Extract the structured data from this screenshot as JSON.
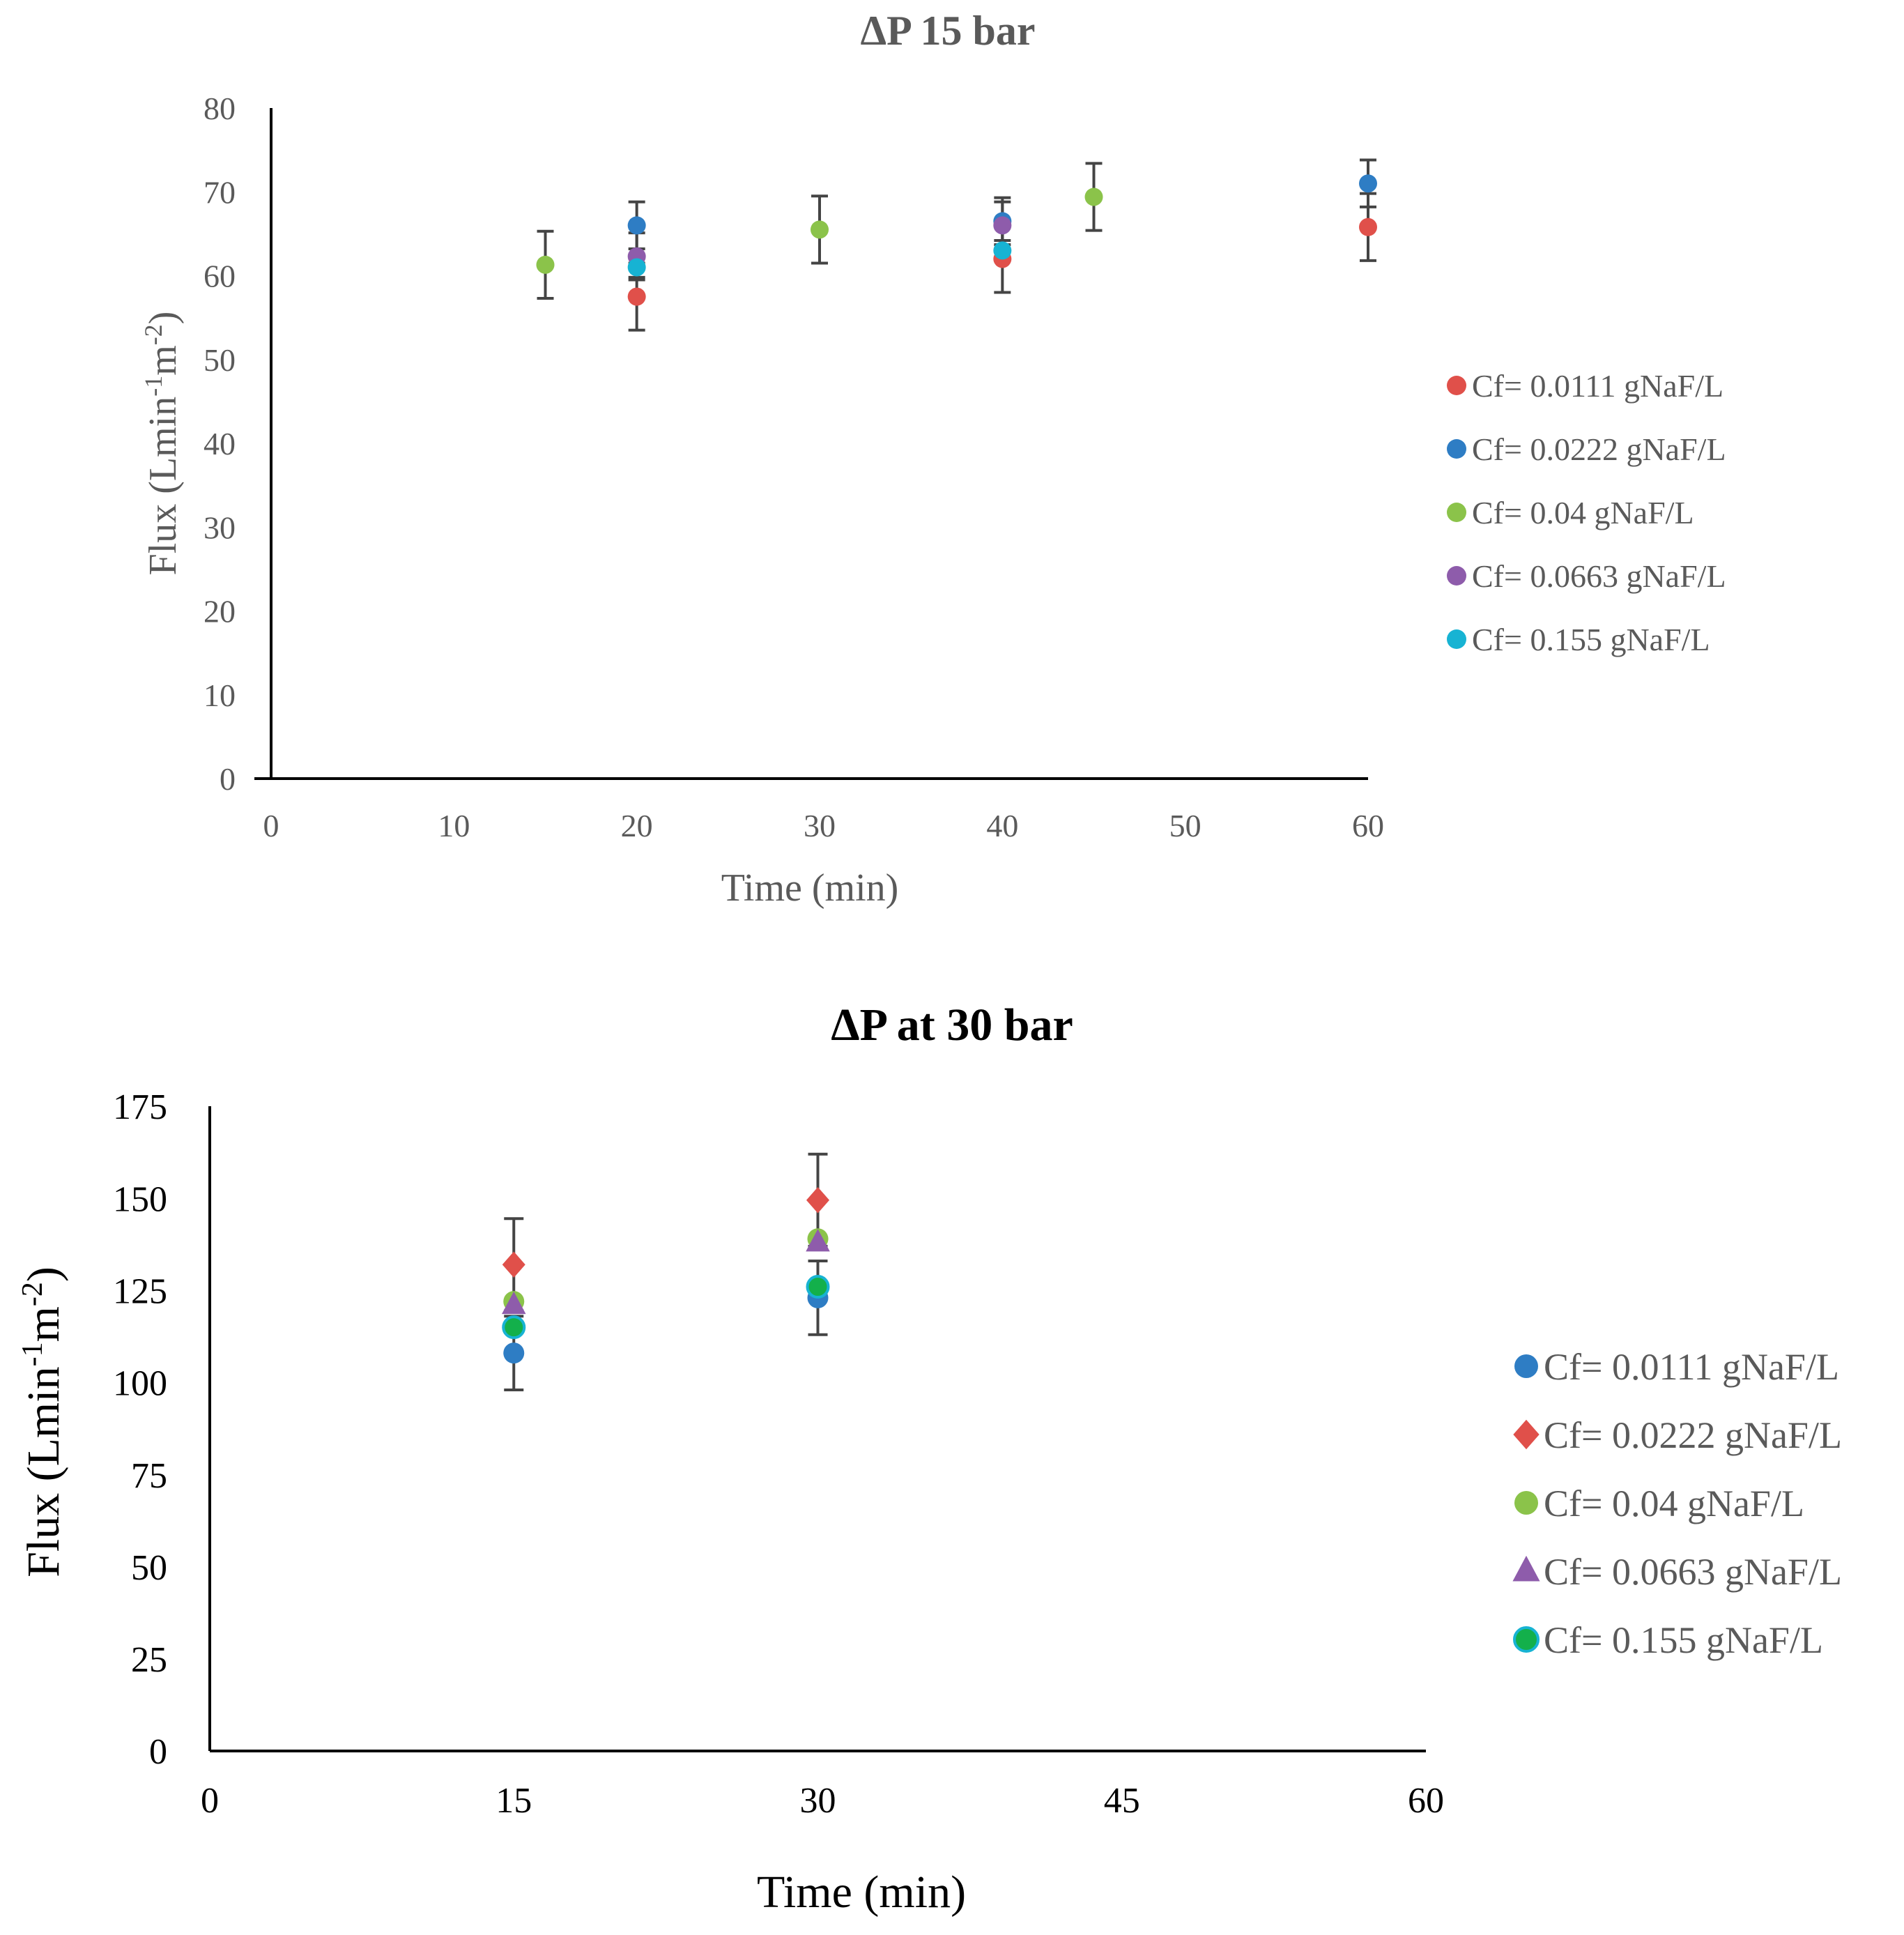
{
  "chart_data": [
    {
      "type": "scatter",
      "title": "ΔP 15 bar",
      "xlabel": "Time (min)",
      "ylabel_main": "Flux (Lmin",
      "ylabel_sup1": "-1",
      "ylabel_mid": "m",
      "ylabel_sup2": "-2",
      "ylabel_end": ")",
      "xlim": [
        0,
        60
      ],
      "ylim": [
        0,
        80
      ],
      "xticks": [
        0,
        10,
        20,
        30,
        40,
        50,
        60
      ],
      "yticks": [
        0,
        10,
        20,
        30,
        40,
        50,
        60,
        70,
        80
      ],
      "legend_position": "right",
      "error_bars": true,
      "series": [
        {
          "name": "Cf= 0.0111 gNaF/L",
          "color": "#e0504a",
          "marker": "circle",
          "points": [
            {
              "x": 20,
              "y": 57.5,
              "err": 4
            },
            {
              "x": 40,
              "y": 62,
              "err": 4
            },
            {
              "x": 60,
              "y": 65.8,
              "err": 4
            }
          ]
        },
        {
          "name": "Cf= 0.0222 gNaF/L",
          "color": "#2e7dc4",
          "marker": "circle",
          "points": [
            {
              "x": 20,
              "y": 66,
              "err": 2.8
            },
            {
              "x": 40,
              "y": 66.5,
              "err": 2.8
            },
            {
              "x": 60,
              "y": 71,
              "err": 2.8
            }
          ]
        },
        {
          "name": "Cf= 0.04 gNaF/L",
          "color": "#8bc34a",
          "marker": "circle",
          "points": [
            {
              "x": 15,
              "y": 61.3,
              "err": 4
            },
            {
              "x": 30,
              "y": 65.5,
              "err": 4
            },
            {
              "x": 45,
              "y": 69.4,
              "err": 4
            }
          ]
        },
        {
          "name": "Cf= 0.0663 gNaF/L",
          "color": "#8e5cab",
          "marker": "circle",
          "points": [
            {
              "x": 20,
              "y": 62.3,
              "err": 2.8
            },
            {
              "x": 40,
              "y": 66,
              "err": 2.8
            }
          ]
        },
        {
          "name": "Cf= 0.155 gNaF/L",
          "color": "#17b3d3",
          "marker": "circle",
          "points": [
            {
              "x": 20,
              "y": 61,
              "err": 1.2
            },
            {
              "x": 40,
              "y": 63,
              "err": 1.2
            }
          ]
        }
      ]
    },
    {
      "type": "scatter",
      "title": "ΔP at 30 bar",
      "xlabel": "Time (min)",
      "ylabel_main": "Flux (Lmin",
      "ylabel_sup1": "-1",
      "ylabel_mid": "m",
      "ylabel_sup2": "-2",
      "ylabel_end": ")",
      "xlim": [
        0,
        60
      ],
      "ylim": [
        0,
        175
      ],
      "xticks": [
        0,
        15,
        30,
        45,
        60
      ],
      "yticks": [
        0,
        25,
        50,
        75,
        100,
        125,
        150,
        175
      ],
      "legend_position": "right",
      "error_bars": true,
      "series": [
        {
          "name": "Cf= 0.0111 gNaF/L",
          "color": "#2e7dc4",
          "marker": "circle",
          "points": [
            {
              "x": 15,
              "y": 108,
              "err": 10
            },
            {
              "x": 30,
              "y": 123,
              "err": 10
            }
          ]
        },
        {
          "name": "Cf= 0.0222 gNaF/L",
          "color": "#e0504a",
          "marker": "diamond",
          "points": [
            {
              "x": 15,
              "y": 132,
              "err": 12.5
            },
            {
              "x": 30,
              "y": 149.5,
              "err": 12.5
            }
          ]
        },
        {
          "name": "Cf= 0.04 gNaF/L",
          "color": "#8bc34a",
          "marker": "circle",
          "points": [
            {
              "x": 15,
              "y": 122,
              "err": 0
            },
            {
              "x": 30,
              "y": 139,
              "err": 0
            }
          ]
        },
        {
          "name": "Cf= 0.0663 gNaF/L",
          "color": "#8e5cab",
          "marker": "triangle",
          "points": [
            {
              "x": 15,
              "y": 121,
              "err": 0
            },
            {
              "x": 30,
              "y": 138,
              "err": 0
            }
          ]
        },
        {
          "name": "Cf= 0.155 gNaF/L",
          "color": "#13b04b",
          "marker": "circle-outlined",
          "outline": "#17b3d3",
          "points": [
            {
              "x": 15,
              "y": 115,
              "err": 0
            },
            {
              "x": 30,
              "y": 126,
              "err": 0
            }
          ]
        }
      ]
    }
  ]
}
